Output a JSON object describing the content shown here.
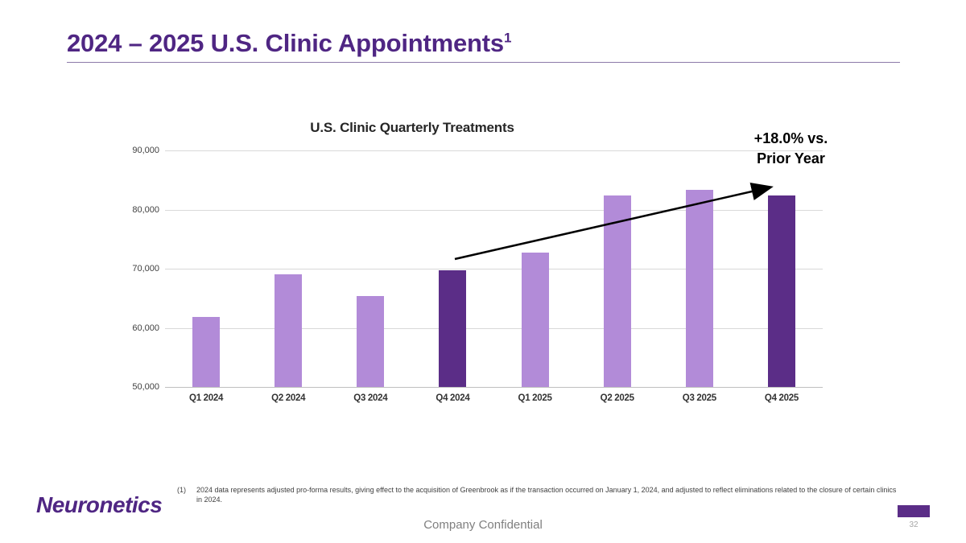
{
  "slide": {
    "title": "2024 – 2025 U.S. Clinic Appointments",
    "title_superscript": "1",
    "logo_text": "Neuronetics",
    "footer_text": "Company Confidential",
    "page_number": "32"
  },
  "footnote": {
    "marker": "(1)",
    "text": "2024 data represents adjusted pro-forma results, giving effect to the acquisition of Greenbrook as if the transaction occurred on January 1, 2024, and adjusted to reflect eliminations related to the closure of certain clinics in 2024."
  },
  "annotation": {
    "line1": "+18.0% vs.",
    "line2": "Prior Year"
  },
  "chart_data": {
    "type": "bar",
    "title": "U.S. Clinic Quarterly Treatments",
    "categories": [
      "Q1 2024",
      "Q2 2024",
      "Q3 2024",
      "Q4 2024",
      "Q1 2025",
      "Q2 2025",
      "Q3 2025",
      "Q4 2025"
    ],
    "values": [
      61800,
      69000,
      65400,
      69800,
      72700,
      82400,
      83400,
      82400
    ],
    "highlight_indices": [
      3,
      7
    ],
    "bar_color": "#b28bd8",
    "highlight_color": "#5b2d87",
    "ylim": [
      50000,
      90000
    ],
    "ytick_step": 10000,
    "ytick_labels": [
      "50,000",
      "60,000",
      "70,000",
      "80,000",
      "90,000"
    ],
    "grid": true,
    "legend_position": "none",
    "annotation": "+18.0% vs. Prior Year",
    "xlabel": "",
    "ylabel": ""
  },
  "colors": {
    "title_purple": "#4f2683",
    "bar_light": "#b28bd8",
    "bar_dark": "#5b2d87",
    "gridline": "#d9d9d9",
    "footer_tab": "#5b2d87"
  }
}
